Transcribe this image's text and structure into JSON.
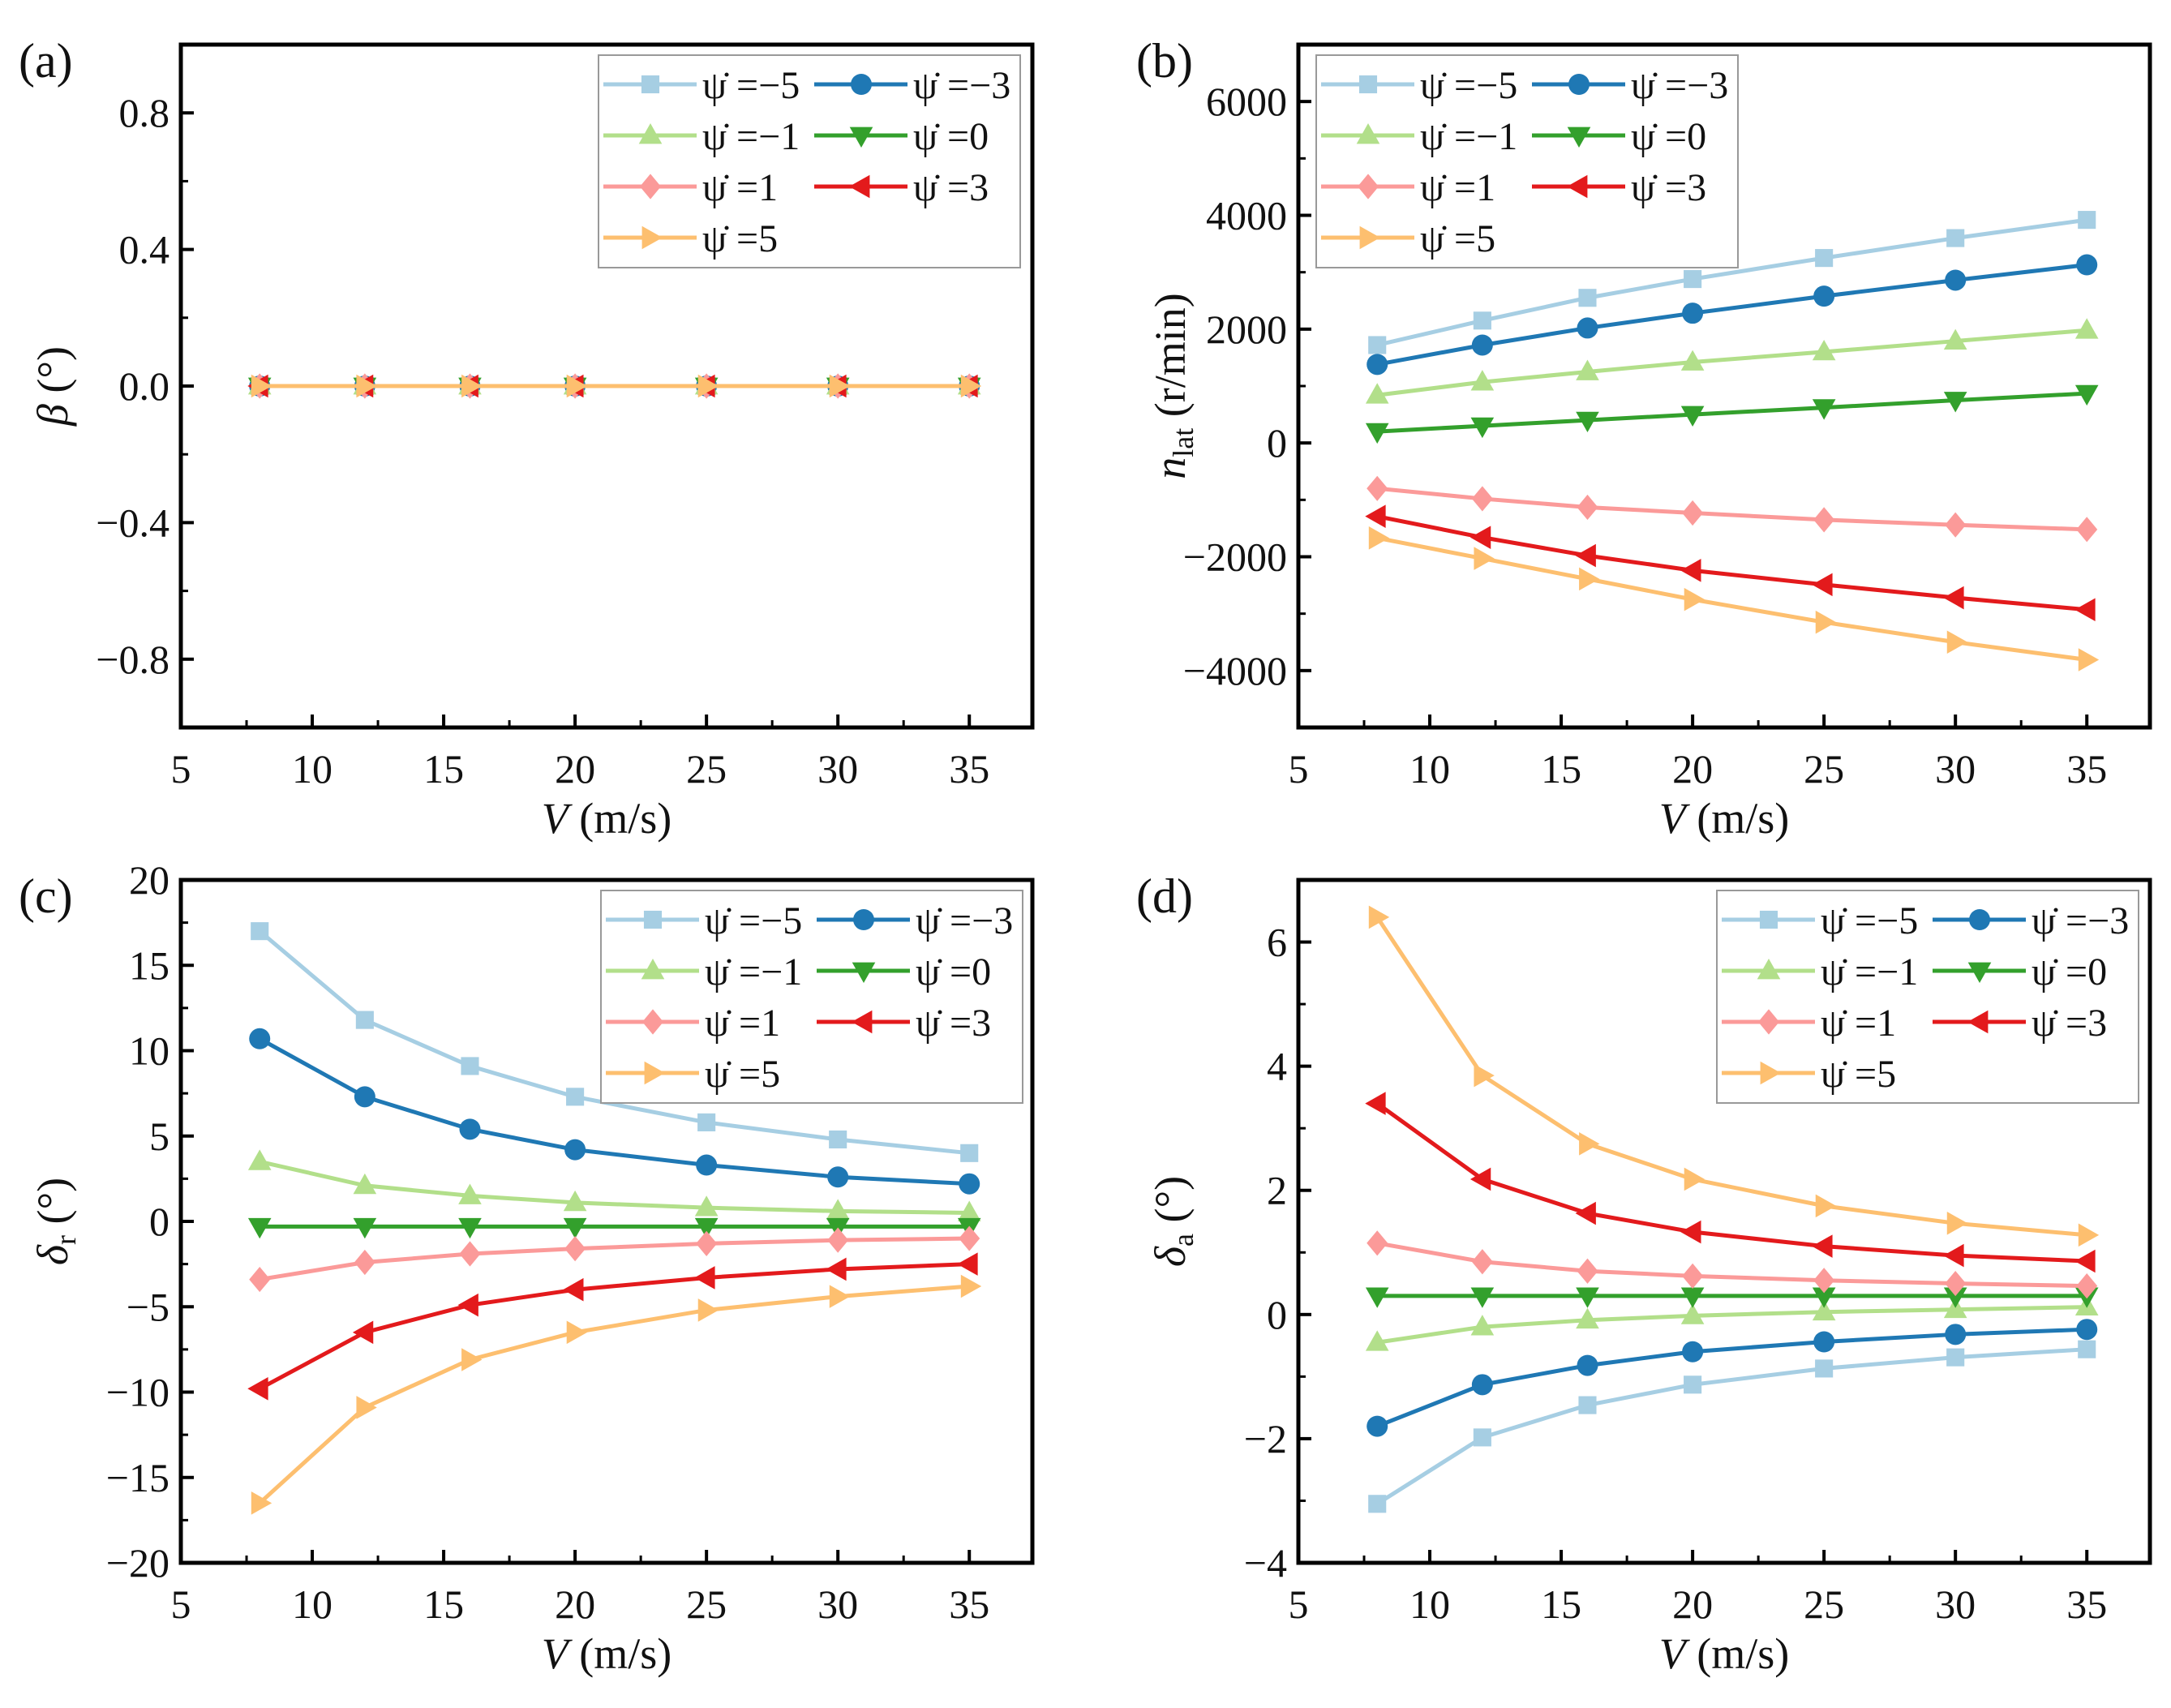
{
  "chart_data": [
    {
      "type": "line",
      "panel_label": "(a)",
      "xlabel": "V (m/s)",
      "xlabel_var": "V",
      "xlabel_unit": " (m/s)",
      "ylabel_var": "β",
      "ylabel_sub": "",
      "ylabel_unit": " (°)",
      "xlim": [
        5,
        37.4
      ],
      "ylim": [
        -1.0,
        1.0
      ],
      "xticks": [
        5,
        10,
        15,
        20,
        25,
        30,
        35
      ],
      "yticks": [
        -0.8,
        -0.4,
        0.0,
        0.4,
        0.8
      ],
      "ytick_labels": [
        "−0.8",
        "−0.4",
        "0.0",
        "0.4",
        "0.8"
      ],
      "legend_position": "top-right",
      "x": [
        8,
        12,
        16,
        20,
        25,
        30,
        35
      ],
      "series": [
        {
          "name": "ψ̇ =−5",
          "values": [
            0,
            0,
            0,
            0,
            0,
            0,
            0
          ]
        },
        {
          "name": "ψ̇ =−3",
          "values": [
            0,
            0,
            0,
            0,
            0,
            0,
            0
          ]
        },
        {
          "name": "ψ̇ =−1",
          "values": [
            0,
            0,
            0,
            0,
            0,
            0,
            0
          ]
        },
        {
          "name": "ψ̇ =0",
          "values": [
            0,
            0,
            0,
            0,
            0,
            0,
            0
          ]
        },
        {
          "name": "ψ̇ =1",
          "values": [
            0,
            0,
            0,
            0,
            0,
            0,
            0
          ]
        },
        {
          "name": "ψ̇ =3",
          "values": [
            0,
            0,
            0,
            0,
            0,
            0,
            0
          ]
        },
        {
          "name": "ψ̇ =5",
          "values": [
            0,
            0,
            0,
            0,
            0,
            0,
            0
          ]
        }
      ]
    },
    {
      "type": "line",
      "panel_label": "(b)",
      "xlabel": "V (m/s)",
      "xlabel_var": "V",
      "xlabel_unit": " (m/s)",
      "ylabel_var": "n",
      "ylabel_sub": "lat",
      "ylabel_unit": " (r/min)",
      "xlim": [
        5,
        37.4
      ],
      "ylim": [
        -5000,
        7000
      ],
      "xticks": [
        5,
        10,
        15,
        20,
        25,
        30,
        35
      ],
      "yticks": [
        -4000,
        -2000,
        0,
        2000,
        4000,
        6000
      ],
      "ytick_labels": [
        "−4000",
        "−2000",
        "0",
        "2000",
        "4000",
        "6000"
      ],
      "legend_position": "top-left",
      "x": [
        8,
        12,
        16,
        20,
        25,
        30,
        35
      ],
      "series": [
        {
          "name": "ψ̇ =−5",
          "values": [
            1720,
            2150,
            2550,
            2880,
            3250,
            3600,
            3920
          ]
        },
        {
          "name": "ψ̇ =−3",
          "values": [
            1380,
            1720,
            2020,
            2280,
            2580,
            2860,
            3130
          ]
        },
        {
          "name": "ψ̇ =−1",
          "values": [
            840,
            1070,
            1250,
            1420,
            1600,
            1790,
            1980
          ]
        },
        {
          "name": "ψ̇ =0",
          "values": [
            200,
            300,
            400,
            500,
            620,
            750,
            870
          ]
        },
        {
          "name": "ψ̇ =1",
          "values": [
            -800,
            -980,
            -1130,
            -1230,
            -1350,
            -1440,
            -1520
          ]
        },
        {
          "name": "ψ̇ =3",
          "values": [
            -1290,
            -1660,
            -1980,
            -2240,
            -2490,
            -2720,
            -2930
          ]
        },
        {
          "name": "ψ̇ =5",
          "values": [
            -1670,
            -2030,
            -2390,
            -2750,
            -3150,
            -3500,
            -3810
          ]
        }
      ]
    },
    {
      "type": "line",
      "panel_label": "(c)",
      "xlabel": "V (m/s)",
      "xlabel_var": "V",
      "xlabel_unit": " (m/s)",
      "ylabel_var": "δ",
      "ylabel_sub": "r",
      "ylabel_unit": " (°)",
      "xlim": [
        5,
        37.4
      ],
      "ylim": [
        -20,
        20
      ],
      "xticks": [
        5,
        10,
        15,
        20,
        25,
        30,
        35
      ],
      "yticks": [
        -20,
        -15,
        -10,
        -5,
        0,
        5,
        10,
        15,
        20
      ],
      "ytick_labels": [
        "−20",
        "−15",
        "−10",
        "−5",
        "0",
        "5",
        "10",
        "15",
        "20"
      ],
      "legend_position": "top-right",
      "x": [
        8,
        12,
        16,
        20,
        25,
        30,
        35
      ],
      "series": [
        {
          "name": "ψ̇ =−5",
          "values": [
            17.0,
            11.8,
            9.1,
            7.3,
            5.8,
            4.8,
            4.0
          ]
        },
        {
          "name": "ψ̇ =−3",
          "values": [
            10.7,
            7.3,
            5.4,
            4.2,
            3.3,
            2.6,
            2.2
          ]
        },
        {
          "name": "ψ̇ =−1",
          "values": [
            3.5,
            2.1,
            1.5,
            1.1,
            0.8,
            0.6,
            0.5
          ]
        },
        {
          "name": "ψ̇ =0",
          "values": [
            -0.3,
            -0.3,
            -0.3,
            -0.3,
            -0.3,
            -0.3,
            -0.3
          ]
        },
        {
          "name": "ψ̇ =1",
          "values": [
            -3.4,
            -2.4,
            -1.9,
            -1.6,
            -1.3,
            -1.1,
            -1.0
          ]
        },
        {
          "name": "ψ̇ =3",
          "values": [
            -9.8,
            -6.5,
            -4.9,
            -4.0,
            -3.3,
            -2.8,
            -2.5
          ]
        },
        {
          "name": "ψ̇ =5",
          "values": [
            -16.5,
            -10.9,
            -8.1,
            -6.5,
            -5.2,
            -4.4,
            -3.8
          ]
        }
      ]
    },
    {
      "type": "line",
      "panel_label": "(d)",
      "xlabel": "V (m/s)",
      "xlabel_var": "V",
      "xlabel_unit": " (m/s)",
      "ylabel_var": "δ",
      "ylabel_sub": "a",
      "ylabel_unit": " (°)",
      "xlim": [
        5,
        37.4
      ],
      "ylim": [
        -4,
        7
      ],
      "xticks": [
        5,
        10,
        15,
        20,
        25,
        30,
        35
      ],
      "yticks": [
        -4,
        -2,
        0,
        2,
        4,
        6
      ],
      "ytick_labels": [
        "−4",
        "−2",
        "0",
        "2",
        "4",
        "6"
      ],
      "legend_position": "top-right",
      "x": [
        8,
        12,
        16,
        20,
        25,
        30,
        35
      ],
      "series": [
        {
          "name": "ψ̇ =−5",
          "values": [
            -3.05,
            -1.98,
            -1.46,
            -1.13,
            -0.87,
            -0.69,
            -0.56
          ]
        },
        {
          "name": "ψ̇ =−3",
          "values": [
            -1.8,
            -1.13,
            -0.82,
            -0.6,
            -0.44,
            -0.32,
            -0.24
          ]
        },
        {
          "name": "ψ̇ =−1",
          "values": [
            -0.45,
            -0.2,
            -0.09,
            -0.02,
            0.04,
            0.08,
            0.12
          ]
        },
        {
          "name": "ψ̇ =0",
          "values": [
            0.3,
            0.3,
            0.3,
            0.3,
            0.3,
            0.3,
            0.3
          ]
        },
        {
          "name": "ψ̇ =1",
          "values": [
            1.15,
            0.85,
            0.7,
            0.62,
            0.55,
            0.5,
            0.46
          ]
        },
        {
          "name": "ψ̇ =3",
          "values": [
            3.4,
            2.18,
            1.63,
            1.33,
            1.1,
            0.95,
            0.86
          ]
        },
        {
          "name": "ψ̇ =5",
          "values": [
            6.4,
            3.85,
            2.75,
            2.18,
            1.75,
            1.47,
            1.28
          ]
        }
      ]
    }
  ],
  "series_style": [
    {
      "color": "#a6cee3",
      "marker": "square"
    },
    {
      "color": "#1f78b4",
      "marker": "circle"
    },
    {
      "color": "#b2df8a",
      "marker": "triangle-up"
    },
    {
      "color": "#33a02c",
      "marker": "triangle-down"
    },
    {
      "color": "#fb9a99",
      "marker": "diamond"
    },
    {
      "color": "#e31a1c",
      "marker": "triangle-left"
    },
    {
      "color": "#fdbf6f",
      "marker": "triangle-right"
    }
  ]
}
